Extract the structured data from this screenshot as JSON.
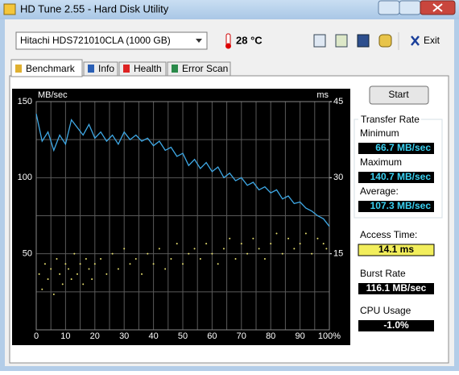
{
  "window": {
    "title": "HD Tune 2.55 - Hard Disk Utility"
  },
  "toolbar": {
    "drive": "Hitachi HDS721010CLA (1000 GB)",
    "temperature": "28 °C",
    "exit": "Exit"
  },
  "tabs": [
    "Benchmark",
    "Info",
    "Health",
    "Error Scan"
  ],
  "chart_data": {
    "type": "line",
    "y_label": "MB/sec",
    "y2_label": "ms",
    "xlim": [
      0,
      100
    ],
    "xticks": [
      0,
      10,
      20,
      30,
      40,
      50,
      60,
      70,
      80,
      90,
      {
        "value": 100,
        "label": "100%"
      }
    ],
    "minor_xticks": [
      5,
      15,
      25,
      35,
      45,
      55,
      65,
      75,
      85,
      95
    ],
    "ylim": [
      0,
      150
    ],
    "yticks": [
      50,
      100,
      150
    ],
    "minor_yticks": [
      25,
      75,
      125
    ],
    "y2lim": [
      0,
      45
    ],
    "y2ticks": [
      15,
      30,
      45
    ],
    "grid": true,
    "series": [
      {
        "color": "#3fa9e6",
        "type": "line",
        "x": [
          0,
          2,
          4,
          6,
          8,
          10,
          12,
          14,
          16,
          18,
          20,
          22,
          24,
          26,
          28,
          30,
          32,
          34,
          36,
          38,
          40,
          42,
          44,
          46,
          48,
          50,
          52,
          54,
          56,
          58,
          60,
          62,
          64,
          66,
          68,
          70,
          72,
          74,
          76,
          78,
          80,
          82,
          84,
          86,
          88,
          90,
          92,
          94,
          96,
          98,
          100
        ],
        "values": [
          142,
          124,
          130,
          118,
          128,
          122,
          138,
          133,
          128,
          135,
          126,
          130,
          124,
          128,
          122,
          130,
          125,
          128,
          124,
          126,
          121,
          124,
          118,
          120,
          114,
          116,
          108,
          112,
          106,
          110,
          104,
          107,
          100,
          103,
          98,
          100,
          95,
          97,
          92,
          94,
          90,
          92,
          86,
          88,
          83,
          84,
          80,
          78,
          75,
          73,
          68
        ]
      },
      {
        "color": "#e8e070",
        "type": "scatter",
        "axis": "y2",
        "x": [
          1,
          2,
          3,
          4,
          5,
          6,
          7,
          8,
          9,
          10,
          11,
          12,
          13,
          14,
          15,
          16,
          17,
          18,
          19,
          20,
          22,
          24,
          26,
          28,
          30,
          32,
          34,
          36,
          38,
          40,
          42,
          44,
          46,
          48,
          50,
          52,
          54,
          56,
          58,
          60,
          62,
          64,
          66,
          68,
          70,
          72,
          74,
          76,
          78,
          80,
          82,
          84,
          86,
          88,
          90,
          92,
          94,
          96,
          98,
          99
        ],
        "values": [
          11,
          8,
          13,
          10,
          12,
          7,
          14,
          11,
          9,
          13,
          12,
          10,
          15,
          11,
          13,
          9,
          14,
          12,
          10,
          13,
          14,
          11,
          15,
          12,
          16,
          13,
          14,
          11,
          15,
          13,
          16,
          12,
          14,
          17,
          13,
          15,
          16,
          14,
          17,
          15,
          13,
          16,
          18,
          14,
          17,
          15,
          18,
          16,
          14,
          17,
          19,
          15,
          18,
          16,
          17,
          19,
          15,
          18,
          17,
          16
        ]
      }
    ]
  },
  "panel": {
    "start": "Start",
    "group": "Transfer Rate",
    "minimum_label": "Minimum",
    "minimum": "66.7 MB/sec",
    "maximum_label": "Maximum",
    "maximum": "140.7 MB/sec",
    "average_label": "Average:",
    "average": "107.3 MB/sec",
    "access_label": "Access Time:",
    "access": "14.1 ms",
    "burst_label": "Burst Rate",
    "burst": "116.1 MB/sec",
    "cpu_label": "CPU Usage",
    "cpu": "-1.0%"
  }
}
